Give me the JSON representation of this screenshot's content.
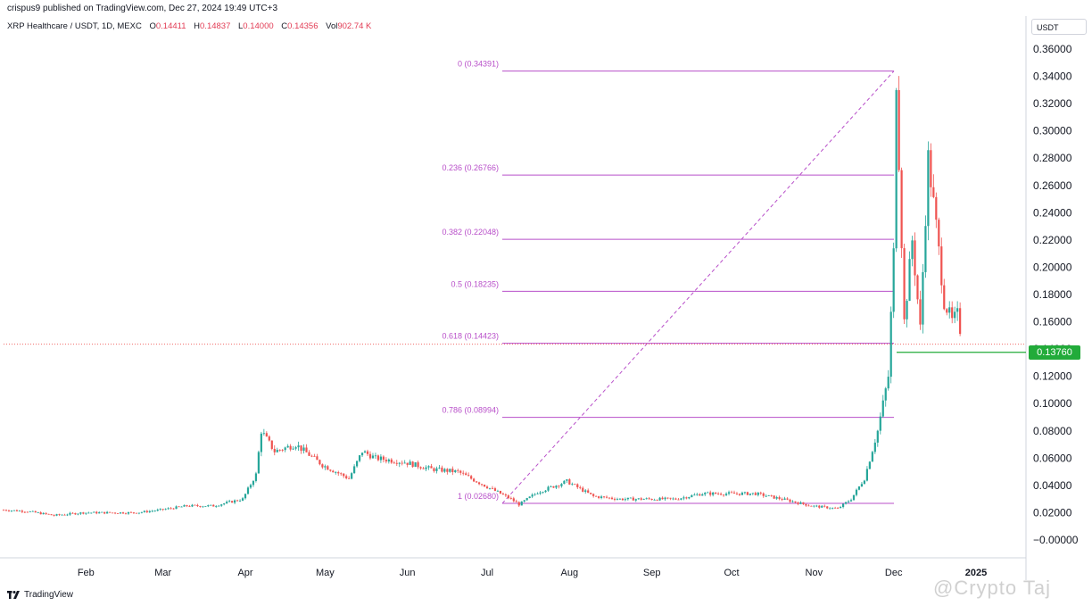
{
  "header": {
    "publisher": "crispus9 published on TradingView.com, Dec 27, 2024 19:49 UTC+3"
  },
  "legend": {
    "symbol": "XRP Healthcare / USDT, 1D, MEXC",
    "open_label": "O",
    "open": "0.14411",
    "high_label": "H",
    "high": "0.14837",
    "low_label": "L",
    "low": "0.14000",
    "close_label": "C",
    "close": "0.14356",
    "vol_label": "Vol",
    "vol": "902.74 K"
  },
  "currency": "USDT",
  "price_tag": "0.13760",
  "footer": {
    "brand": "TradingView"
  },
  "watermark": "@Crypto Taj",
  "colors": {
    "up": "#26a69a",
    "down": "#ef5350",
    "fib": "#b84fc9",
    "tag": "#22ab3a"
  },
  "chart_data": {
    "type": "candlestick",
    "y_ticks": [
      "0.36000",
      "0.34000",
      "0.32000",
      "0.30000",
      "0.28000",
      "0.26000",
      "0.24000",
      "0.22000",
      "0.20000",
      "0.18000",
      "0.16000",
      "0.14000",
      "0.12000",
      "0.10000",
      "0.08000",
      "0.06000",
      "0.04000",
      "0.02000",
      "−0.00000"
    ],
    "ylim": [
      -0.002,
      0.37
    ],
    "x_labels": [
      "Feb",
      "Mar",
      "Apr",
      "May",
      "Jun",
      "Jul",
      "Aug",
      "Sep",
      "Oct",
      "Nov",
      "Dec",
      "2025"
    ],
    "fib_levels": [
      {
        "label": "0 (0.34391)",
        "value": 0.34391
      },
      {
        "label": "0.236 (0.26766)",
        "value": 0.26766
      },
      {
        "label": "0.382 (0.22048)",
        "value": 0.22048
      },
      {
        "label": "0.5 (0.18235)",
        "value": 0.18235
      },
      {
        "label": "0.618 (0.14423)",
        "value": 0.14423
      },
      {
        "label": "0.786 (0.08994)",
        "value": 0.08994
      },
      {
        "label": "1 (0.02680)",
        "value": 0.0268
      }
    ],
    "price_line": 0.1376,
    "series": [
      {
        "name": "XRP Healthcare / USDT",
        "points": [
          {
            "date": "2024-01-01",
            "close": 0.022
          },
          {
            "date": "2024-01-10",
            "close": 0.021
          },
          {
            "date": "2024-01-20",
            "close": 0.018
          },
          {
            "date": "2024-01-31",
            "close": 0.02
          },
          {
            "date": "2024-02-10",
            "close": 0.02
          },
          {
            "date": "2024-02-20",
            "close": 0.02
          },
          {
            "date": "2024-02-29",
            "close": 0.022
          },
          {
            "date": "2024-03-10",
            "close": 0.025
          },
          {
            "date": "2024-03-20",
            "close": 0.025
          },
          {
            "date": "2024-03-31",
            "close": 0.03
          },
          {
            "date": "2024-04-05",
            "close": 0.048
          },
          {
            "date": "2024-04-07",
            "close": 0.08
          },
          {
            "date": "2024-04-12",
            "close": 0.065
          },
          {
            "date": "2024-04-20",
            "close": 0.07
          },
          {
            "date": "2024-04-30",
            "close": 0.055
          },
          {
            "date": "2024-05-10",
            "close": 0.045
          },
          {
            "date": "2024-05-15",
            "close": 0.065
          },
          {
            "date": "2024-05-20",
            "close": 0.06
          },
          {
            "date": "2024-05-31",
            "close": 0.057
          },
          {
            "date": "2024-06-10",
            "close": 0.052
          },
          {
            "date": "2024-06-20",
            "close": 0.05
          },
          {
            "date": "2024-06-30",
            "close": 0.04
          },
          {
            "date": "2024-07-10",
            "close": 0.03
          },
          {
            "date": "2024-07-13",
            "close": 0.026
          },
          {
            "date": "2024-07-20",
            "close": 0.035
          },
          {
            "date": "2024-07-31",
            "close": 0.043
          },
          {
            "date": "2024-08-10",
            "close": 0.032
          },
          {
            "date": "2024-08-20",
            "close": 0.03
          },
          {
            "date": "2024-08-31",
            "close": 0.03
          },
          {
            "date": "2024-09-10",
            "close": 0.03
          },
          {
            "date": "2024-09-20",
            "close": 0.034
          },
          {
            "date": "2024-09-30",
            "close": 0.034
          },
          {
            "date": "2024-10-10",
            "close": 0.034
          },
          {
            "date": "2024-10-20",
            "close": 0.03
          },
          {
            "date": "2024-10-31",
            "close": 0.025
          },
          {
            "date": "2024-11-10",
            "close": 0.023
          },
          {
            "date": "2024-11-15",
            "close": 0.03
          },
          {
            "date": "2024-11-20",
            "close": 0.045
          },
          {
            "date": "2024-11-25",
            "close": 0.08
          },
          {
            "date": "2024-11-29",
            "close": 0.12
          },
          {
            "date": "2024-12-01",
            "close": 0.21
          },
          {
            "date": "2024-12-02",
            "close": 0.34
          },
          {
            "date": "2024-12-05",
            "close": 0.16
          },
          {
            "date": "2024-12-08",
            "close": 0.22
          },
          {
            "date": "2024-12-11",
            "close": 0.155
          },
          {
            "date": "2024-12-14",
            "close": 0.28
          },
          {
            "date": "2024-12-17",
            "close": 0.23
          },
          {
            "date": "2024-12-20",
            "close": 0.175
          },
          {
            "date": "2024-12-23",
            "close": 0.16
          },
          {
            "date": "2024-12-25",
            "close": 0.165
          },
          {
            "date": "2024-12-27",
            "close": 0.144
          }
        ]
      }
    ]
  }
}
